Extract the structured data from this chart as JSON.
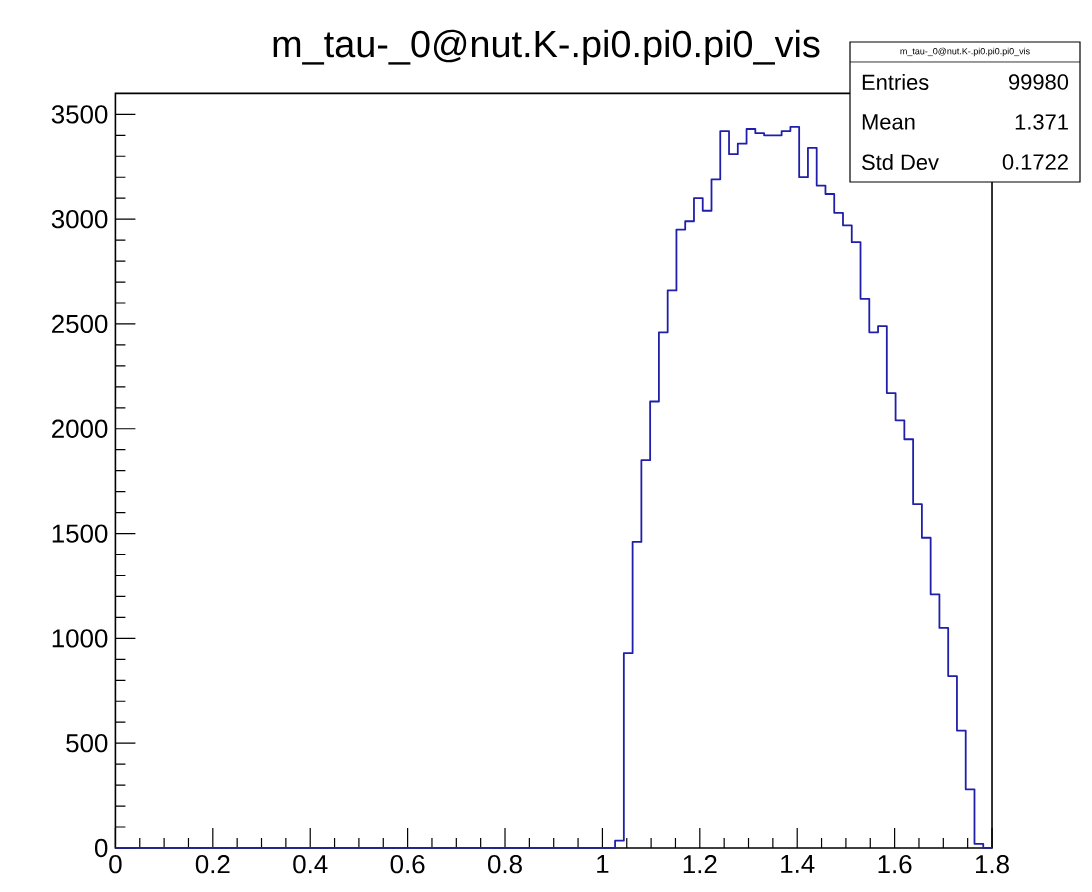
{
  "chart_data": {
    "type": "histogram",
    "title": "m_tau-_0@nut.K-.pi0.pi0.pi0_vis",
    "bins": [
      0,
      0.018,
      0.036,
      0.054,
      0.072,
      0.09,
      0.108,
      0.126,
      0.144,
      0.162,
      0.18,
      0.198,
      0.216,
      0.234,
      0.252,
      0.27,
      0.288,
      0.306,
      0.324,
      0.342,
      0.36,
      0.378,
      0.396,
      0.414,
      0.432,
      0.45,
      0.468,
      0.486,
      0.504,
      0.522,
      0.54,
      0.558,
      0.576,
      0.594,
      0.612,
      0.63,
      0.648,
      0.666,
      0.684,
      0.702,
      0.72,
      0.738,
      0.756,
      0.774,
      0.792,
      0.81,
      0.828,
      0.846,
      0.864,
      0.882,
      0.9,
      0.918,
      0.936,
      0.954,
      0.972,
      0.99,
      1.008,
      1.026,
      1.044,
      1.062,
      1.08,
      1.098,
      1.116,
      1.134,
      1.152,
      1.17,
      1.188,
      1.206,
      1.224,
      1.242,
      1.26,
      1.278,
      1.296,
      1.314,
      1.332,
      1.35,
      1.368,
      1.386,
      1.404,
      1.422,
      1.44,
      1.458,
      1.476,
      1.494,
      1.512,
      1.53,
      1.548,
      1.566,
      1.584,
      1.602,
      1.62,
      1.638,
      1.656,
      1.674,
      1.692,
      1.71,
      1.728,
      1.746,
      1.764,
      1.782,
      1.8
    ],
    "values": [
      0,
      0,
      0,
      0,
      0,
      0,
      0,
      0,
      0,
      0,
      0,
      0,
      0,
      0,
      0,
      0,
      0,
      0,
      0,
      0,
      0,
      0,
      0,
      0,
      0,
      0,
      0,
      0,
      0,
      0,
      0,
      0,
      0,
      0,
      0,
      0,
      0,
      0,
      0,
      0,
      0,
      0,
      0,
      0,
      0,
      0,
      0,
      0,
      0,
      0,
      0,
      0,
      0,
      0,
      0,
      0,
      0,
      35,
      930,
      1460,
      1850,
      2130,
      2460,
      2660,
      2950,
      2990,
      3100,
      3040,
      3190,
      3420,
      3310,
      3360,
      3430,
      3410,
      3400,
      3400,
      3420,
      3440,
      3200,
      3340,
      3160,
      3120,
      3030,
      2970,
      2890,
      2620,
      2460,
      2490,
      2170,
      2040,
      1950,
      1640,
      1480,
      1210,
      1050,
      820,
      560,
      280,
      20,
      0
    ],
    "color": "#1f1faa",
    "xlim": [
      0,
      1.8
    ],
    "ylim": [
      0,
      3600
    ],
    "xticks": [
      0,
      0.2,
      0.4,
      0.6,
      0.8,
      1,
      1.2,
      1.4,
      1.6,
      1.8
    ],
    "yticks": [
      0,
      500,
      1000,
      1500,
      2000,
      2500,
      3000,
      3500
    ],
    "grid": false,
    "annotations": [
      "m_tau-_0@nut.K-.pi0.pi0.pi0_vis",
      "Entries",
      "99980",
      "Mean",
      "1.371",
      "Std Dev",
      "0.1722"
    ]
  }
}
